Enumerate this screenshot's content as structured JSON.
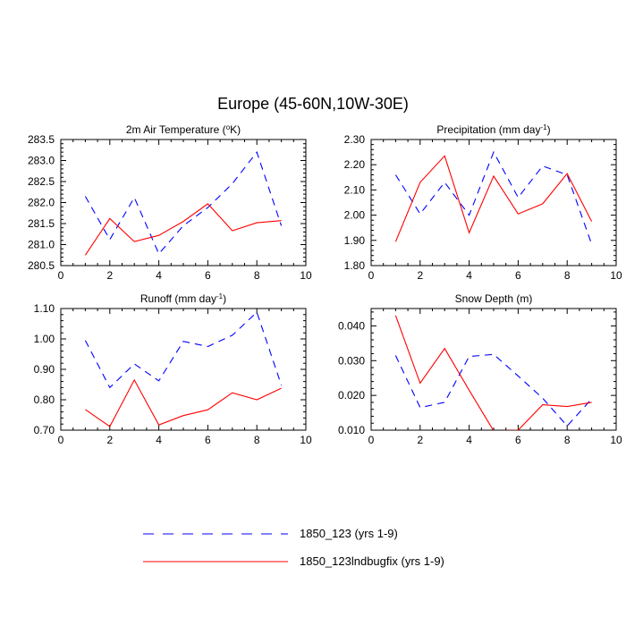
{
  "figure_title": "Europe (45-60N,10W-30E)",
  "colors": {
    "series1": "#0000ff",
    "series2": "#ff0000",
    "axis": "#000000"
  },
  "legend": [
    {
      "name": "1850_123 (yrs 1-9)",
      "style": "dashed",
      "color": "#0000ff"
    },
    {
      "name": "1850_123lndbugfix (yrs 1-9)",
      "style": "solid",
      "color": "#ff0000"
    }
  ],
  "chart_data": [
    {
      "type": "line",
      "title": "2m Air Temperature (",
      "title_sup": "o",
      "title_post": "K)",
      "xlim": [
        0,
        10
      ],
      "ylim": [
        280.5,
        283.5
      ],
      "xticks": [
        "0",
        "2",
        "4",
        "6",
        "8",
        "10"
      ],
      "yticks": [
        "280.5",
        "281.0",
        "281.5",
        "282.0",
        "282.5",
        "283.0",
        "283.5"
      ],
      "x": [
        1,
        2,
        3,
        4,
        5,
        6,
        7,
        8,
        9
      ],
      "series": [
        {
          "name": "1850_123 (yrs 1-9)",
          "values": [
            282.15,
            281.12,
            282.12,
            280.78,
            281.45,
            281.88,
            282.45,
            283.2,
            281.45
          ]
        },
        {
          "name": "1850_123lndbugfix (yrs 1-9)",
          "values": [
            280.75,
            281.62,
            281.07,
            281.22,
            281.55,
            281.97,
            281.33,
            281.52,
            281.57
          ]
        }
      ]
    },
    {
      "type": "line",
      "title": "Precipitation (mm day",
      "title_sup": "-1",
      "title_post": ")",
      "xlim": [
        0,
        10
      ],
      "ylim": [
        1.8,
        2.3
      ],
      "xticks": [
        "0",
        "2",
        "4",
        "6",
        "8",
        "10"
      ],
      "yticks": [
        "1.80",
        "1.90",
        "2.00",
        "2.10",
        "2.20",
        "2.30"
      ],
      "x": [
        1,
        2,
        3,
        4,
        5,
        6,
        7,
        8,
        9
      ],
      "series": [
        {
          "name": "1850_123 (yrs 1-9)",
          "values": [
            2.16,
            2.005,
            2.13,
            2.0,
            2.25,
            2.07,
            2.195,
            2.16,
            1.885
          ]
        },
        {
          "name": "1850_123lndbugfix (yrs 1-9)",
          "values": [
            1.895,
            2.13,
            2.235,
            1.93,
            2.155,
            2.005,
            2.045,
            2.165,
            1.975
          ]
        }
      ]
    },
    {
      "type": "line",
      "title": "Runoff (mm day",
      "title_sup": "-1",
      "title_post": ")",
      "xlim": [
        0,
        10
      ],
      "ylim": [
        0.7,
        1.1
      ],
      "xticks": [
        "0",
        "2",
        "4",
        "6",
        "8",
        "10"
      ],
      "yticks": [
        "0.70",
        "0.80",
        "0.90",
        "1.00",
        "1.10"
      ],
      "x": [
        1,
        2,
        3,
        4,
        5,
        6,
        7,
        8,
        9
      ],
      "series": [
        {
          "name": "1850_123 (yrs 1-9)",
          "values": [
            0.995,
            0.84,
            0.918,
            0.862,
            0.992,
            0.975,
            1.012,
            1.088,
            0.848
          ]
        },
        {
          "name": "1850_123lndbugfix (yrs 1-9)",
          "values": [
            0.768,
            0.712,
            0.865,
            0.717,
            0.748,
            0.767,
            0.823,
            0.8,
            0.838
          ]
        }
      ]
    },
    {
      "type": "line",
      "title": "Snow Depth (m)",
      "title_sup": "",
      "title_post": "",
      "xlim": [
        0,
        10
      ],
      "ylim": [
        0.01,
        0.045
      ],
      "xticks": [
        "0",
        "2",
        "4",
        "6",
        "8",
        "10"
      ],
      "yticks": [
        "0.010",
        "0.020",
        "0.030",
        "0.040"
      ],
      "ytick_values": [
        0.01,
        0.02,
        0.03,
        0.04
      ],
      "x": [
        1,
        2,
        3,
        4,
        5,
        6,
        7,
        8,
        9
      ],
      "series": [
        {
          "name": "1850_123 (yrs 1-9)",
          "values": [
            0.0315,
            0.0165,
            0.018,
            0.0312,
            0.0318,
            0.0256,
            0.0192,
            0.0112,
            0.019
          ]
        },
        {
          "name": "1850_123lndbugfix (yrs 1-9)",
          "values": [
            0.043,
            0.0235,
            0.0335,
            0.0215,
            0.0098,
            0.01,
            0.0173,
            0.0168,
            0.018
          ]
        }
      ]
    }
  ]
}
